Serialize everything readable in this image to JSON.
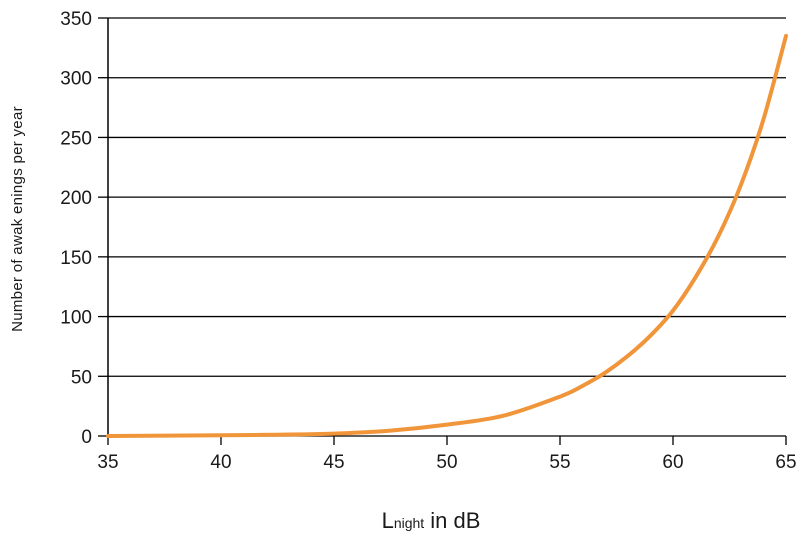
{
  "chart_data": {
    "type": "line",
    "title": "",
    "xlabel_main": "L",
    "xlabel_sub": "night",
    "xlabel_rest": " in dB",
    "ylabel": "Number of awak enings per year",
    "xlim": [
      35,
      65
    ],
    "ylim": [
      0,
      350
    ],
    "x_ticks": [
      35,
      40,
      45,
      50,
      55,
      60,
      65
    ],
    "y_ticks": [
      0,
      50,
      100,
      150,
      200,
      250,
      300,
      350
    ],
    "grid": "horizontal",
    "series": [
      {
        "color": "#f0953a",
        "x": [
          35,
          40,
          42.5,
          45,
          47.5,
          50,
          52.5,
          55,
          56,
          57,
          58,
          59,
          60,
          61,
          62,
          63,
          64,
          65
        ],
        "y": [
          0,
          0.6,
          1.1,
          2.0,
          4.5,
          9.5,
          17,
          33,
          42,
          53,
          67,
          84,
          105,
          133,
          167,
          210,
          265,
          335
        ]
      }
    ]
  }
}
